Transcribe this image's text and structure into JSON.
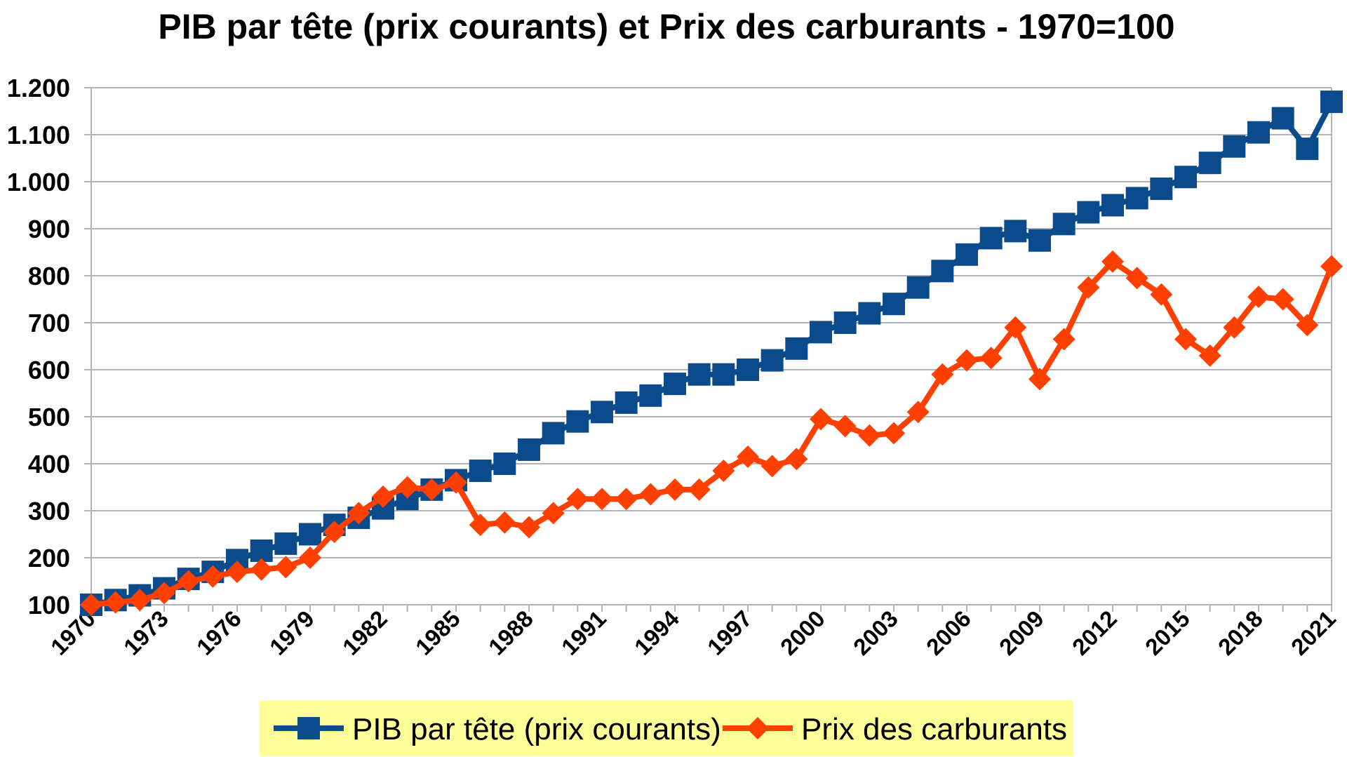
{
  "chart_data": {
    "type": "line",
    "title": "PIB par tête (prix courants) et Prix des carburants - 1970=100",
    "xlabel": "",
    "ylabel": "",
    "ylim": [
      100,
      1200
    ],
    "yticks": [
      "1.200",
      "1.100",
      "1.000",
      "900",
      "800",
      "700",
      "600",
      "500",
      "400",
      "300",
      "200",
      "100"
    ],
    "ytick_values": [
      1200,
      1100,
      1000,
      900,
      800,
      700,
      600,
      500,
      400,
      300,
      200,
      100
    ],
    "xticks": [
      "1970",
      "1973",
      "1976",
      "1979",
      "1982",
      "1985",
      "1988",
      "1991",
      "1994",
      "1997",
      "2000",
      "2003",
      "2006",
      "2009",
      "2012",
      "2015",
      "2018",
      "2021"
    ],
    "x": [
      1970,
      1971,
      1972,
      1973,
      1974,
      1975,
      1976,
      1977,
      1978,
      1979,
      1980,
      1981,
      1982,
      1983,
      1984,
      1985,
      1986,
      1987,
      1988,
      1989,
      1990,
      1991,
      1992,
      1993,
      1994,
      1995,
      1996,
      1997,
      1998,
      1999,
      2000,
      2001,
      2002,
      2003,
      2004,
      2005,
      2006,
      2007,
      2008,
      2009,
      2010,
      2011,
      2012,
      2013,
      2014,
      2015,
      2016,
      2017,
      2018,
      2019,
      2020,
      2021
    ],
    "grid": true,
    "legend_position": "bottom",
    "series": [
      {
        "name": "PIB par tête (prix courants)",
        "color": "#0b4a8b",
        "marker": "square",
        "values": [
          100,
          110,
          120,
          135,
          155,
          170,
          195,
          215,
          230,
          250,
          270,
          285,
          305,
          325,
          345,
          365,
          385,
          400,
          430,
          465,
          490,
          510,
          530,
          545,
          570,
          590,
          590,
          600,
          620,
          645,
          680,
          700,
          720,
          740,
          775,
          810,
          845,
          880,
          895,
          875,
          910,
          935,
          950,
          965,
          985,
          1010,
          1040,
          1075,
          1105,
          1135,
          1070,
          1170
        ]
      },
      {
        "name": "Prix des carburants",
        "color": "#ff4000",
        "marker": "diamond",
        "values": [
          100,
          105,
          110,
          125,
          150,
          160,
          170,
          175,
          180,
          200,
          255,
          295,
          330,
          350,
          345,
          360,
          270,
          275,
          265,
          295,
          325,
          325,
          325,
          335,
          345,
          345,
          385,
          415,
          395,
          410,
          495,
          480,
          460,
          465,
          510,
          590,
          620,
          625,
          690,
          580,
          665,
          775,
          830,
          795,
          760,
          665,
          630,
          690,
          755,
          750,
          695,
          820
        ]
      }
    ],
    "legend": {
      "background": "#ffff99"
    }
  }
}
